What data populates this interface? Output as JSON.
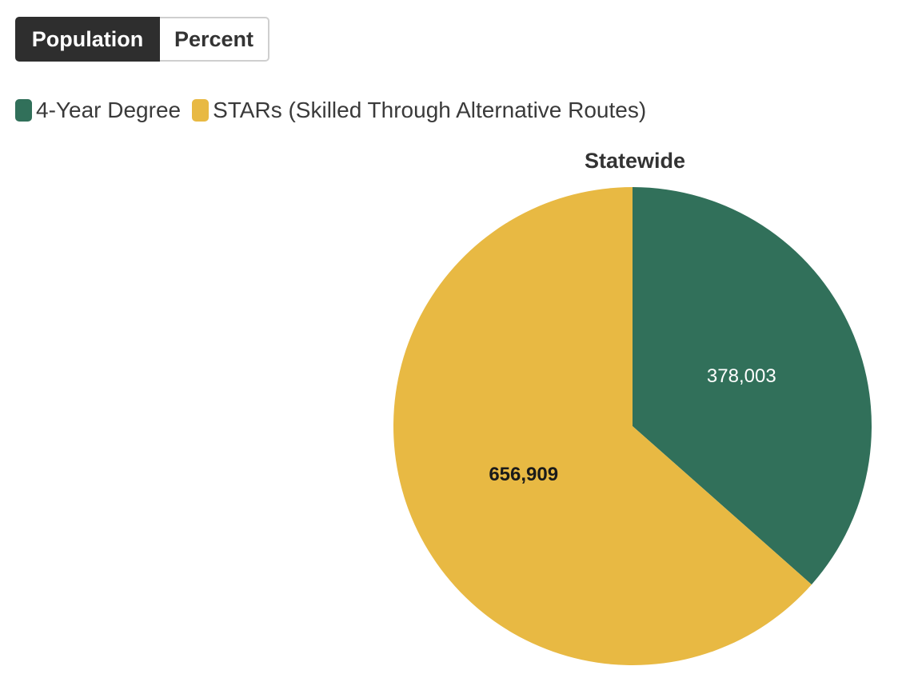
{
  "toggle": {
    "options": [
      "Population",
      "Percent"
    ],
    "selected": "Population"
  },
  "legend": [
    {
      "label": "4-Year Degree",
      "color": "#31705a"
    },
    {
      "label": "STARs (Skilled Through Alternative Routes)",
      "color": "#e8b943"
    }
  ],
  "chart_data": {
    "type": "pie",
    "title": "Statewide",
    "series": [
      {
        "name": "4-Year Degree",
        "value": 378003,
        "label": "378,003",
        "color": "#31705a",
        "label_color": "#ffffff"
      },
      {
        "name": "STARs (Skilled Through Alternative Routes)",
        "value": 656909,
        "label": "656,909",
        "color": "#e8b943",
        "label_color": "#1a1a1a"
      }
    ],
    "start_angle": "12 o'clock",
    "direction": "clockwise",
    "legend_position": "top-left"
  }
}
